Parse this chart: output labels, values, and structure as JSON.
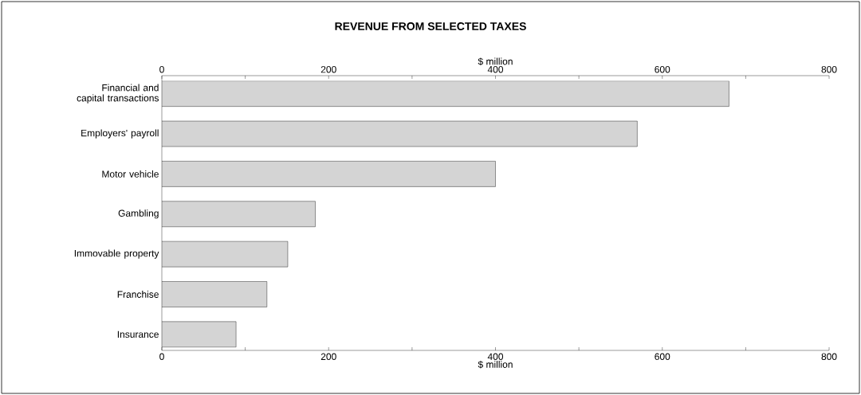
{
  "chart_data": {
    "type": "bar",
    "orientation": "horizontal",
    "title": "REVENUE FROM SELECTED TAXES",
    "categories": [
      "Financial and capital transactions",
      "Employers' payroll",
      "Motor vehicle",
      "Gambling",
      "Immovable property",
      "Franchise",
      "Insurance"
    ],
    "values": [
      680,
      570,
      400,
      184,
      151,
      126,
      89
    ],
    "color": "#d4d4d4",
    "xlim": [
      0,
      800
    ],
    "xticks": [
      0,
      {
        "value": 100,
        "label": null
      },
      200,
      {
        "value": 300,
        "label": null
      },
      400,
      {
        "value": 500,
        "label": null
      },
      600,
      {
        "value": 700,
        "label": null
      },
      800
    ],
    "x2lim": [
      0,
      800
    ],
    "x2ticks": [
      0,
      {
        "value": 100,
        "label": null
      },
      200,
      {
        "value": 300,
        "label": null
      },
      400,
      {
        "value": 500,
        "label": null
      },
      600,
      {
        "value": 700,
        "label": null
      },
      800
    ],
    "xlabel": "$ million",
    "x2label": "$ million"
  }
}
